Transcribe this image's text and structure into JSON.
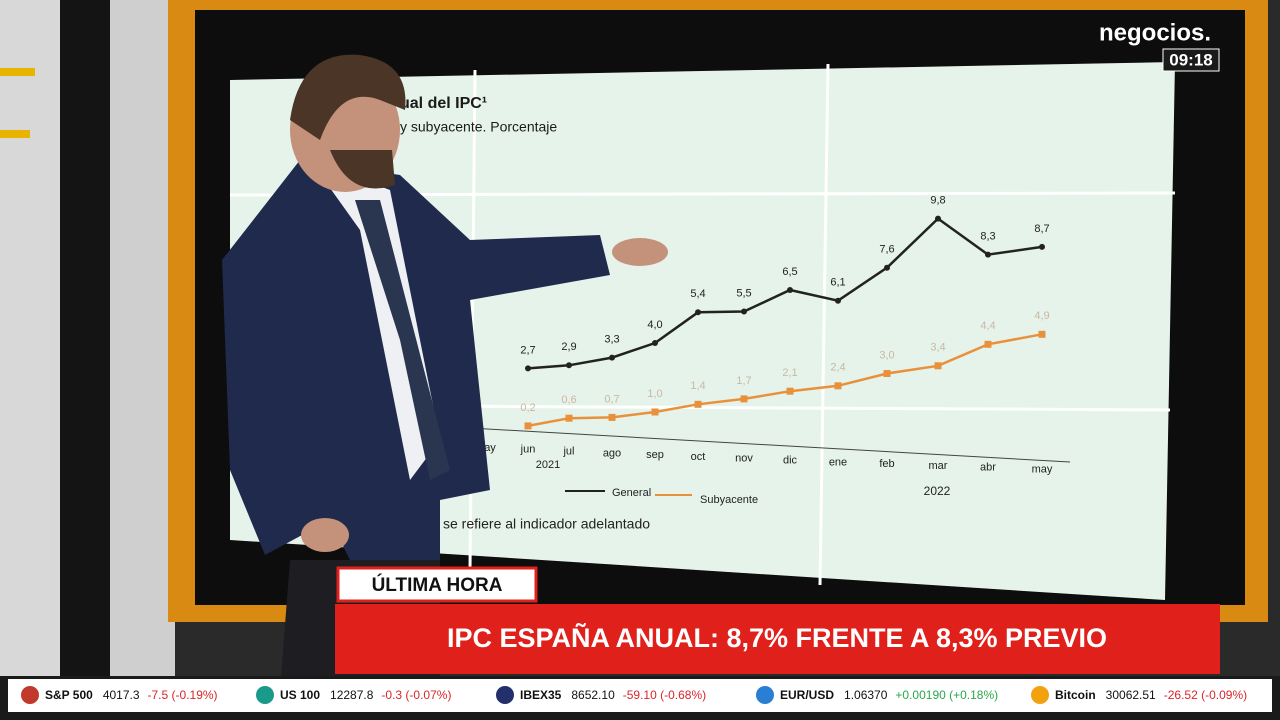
{
  "logo": "negocios.",
  "clock": "09:18",
  "screen": {
    "title": "ual del IPC¹",
    "subtitle": "y subyacente. Porcentaje",
    "categories": [
      "ay",
      "jun",
      "jul",
      "ago",
      "sep",
      "oct",
      "nov",
      "dic",
      "ene",
      "feb",
      "mar",
      "abr",
      "may"
    ],
    "years": [
      "2021",
      "2022"
    ],
    "series": [
      {
        "name": "General",
        "color": "#222222",
        "values": [
          null,
          2.7,
          2.9,
          3.3,
          4.0,
          5.4,
          5.5,
          6.5,
          6.1,
          7.6,
          9.8,
          8.3,
          8.7
        ],
        "value_labels": [
          null,
          "2,7",
          "2,9",
          "3,3",
          "4,0",
          "5,4",
          "5,5",
          "6,5",
          "6,1",
          "7,6",
          "9,8",
          "8,3",
          "8,7"
        ]
      },
      {
        "name": "Subyacente",
        "color": "#e8913a",
        "values": [
          null,
          0.2,
          0.6,
          0.7,
          1.0,
          1.4,
          1.7,
          2.1,
          2.4,
          3.0,
          3.4,
          4.4,
          4.9
        ],
        "value_labels": [
          null,
          "0,2",
          "0,6",
          "0,7",
          "1,0",
          "1,4",
          "1,7",
          "2,1",
          "2,4",
          "3,0",
          "3,4",
          "4,4",
          "4,9"
        ]
      }
    ],
    "footnote": "se refiere al indicador adelantado"
  },
  "breaking": {
    "label": "ÚLTIMA HORA",
    "headline": "IPC ESPAÑA ANUAL: 8,7% FRENTE A 8,3% PREVIO"
  },
  "ticker": [
    {
      "name": "S&P 500",
      "price": "4017.3",
      "change": "-7.5 (-0.19%)"
    },
    {
      "name": "US 100",
      "price": "12287.8",
      "change": "-0.3 (-0.07%)"
    },
    {
      "name": "IBEX35",
      "price": "8652.10",
      "change": "-59.10 (-0.68%)"
    },
    {
      "name": "EUR/USD",
      "price": "1.06370",
      "change": "+0.00190 (+0.18%)"
    },
    {
      "name": "Bitcoin",
      "price": "30062.51",
      "change": "-26.52 (-0.09%)"
    }
  ]
}
